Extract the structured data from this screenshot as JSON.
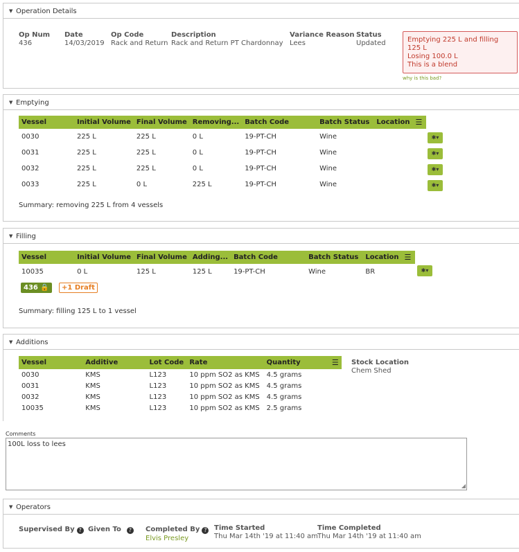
{
  "operation": {
    "header": "Operation Details",
    "columns": [
      {
        "label": "Op Num",
        "value": "436"
      },
      {
        "label": "Date",
        "value": "14/03/2019"
      },
      {
        "label": "Op Code",
        "value": "Rack and Return"
      },
      {
        "label": "Description",
        "value": "Rack and Return PT Chardonnay"
      },
      {
        "label": "Variance Reason",
        "value": "Lees"
      },
      {
        "label": "Status",
        "value": "Updated"
      }
    ],
    "error_lines": [
      "Emptying 225 L and filling 125 L",
      "Losing 100.0 L",
      "This is a blend"
    ],
    "why_link": "why is this bad?"
  },
  "emptying": {
    "header": "Emptying",
    "columns": [
      "Vessel",
      "Initial Volume",
      "Final Volume",
      "Removing...",
      "Batch Code",
      "Batch Status",
      "Location"
    ],
    "rows": [
      [
        "0030",
        "225 L",
        "225 L",
        "0 L",
        "19-PT-CH",
        "Wine",
        ""
      ],
      [
        "0031",
        "225 L",
        "225 L",
        "0 L",
        "19-PT-CH",
        "Wine",
        ""
      ],
      [
        "0032",
        "225 L",
        "225 L",
        "0 L",
        "19-PT-CH",
        "Wine",
        ""
      ],
      [
        "0033",
        "225 L",
        "0 L",
        "225 L",
        "19-PT-CH",
        "Wine",
        ""
      ]
    ],
    "summary": "Summary: removing 225 L from 4 vessels"
  },
  "filling": {
    "header": "Filling",
    "columns": [
      "Vessel",
      "Initial Volume",
      "Final Volume",
      "Adding...",
      "Batch Code",
      "Batch Status",
      "Location"
    ],
    "rows": [
      [
        "10035",
        "0 L",
        "125 L",
        "125 L",
        "19-PT-CH",
        "Wine",
        "BR"
      ]
    ],
    "badge_locked": "436",
    "badge_draft": "+1 Draft",
    "summary": "Summary: filling 125 L to 1 vessel"
  },
  "additions": {
    "header": "Additions",
    "columns": [
      "Vessel",
      "Additive",
      "Lot Code",
      "Rate",
      "Quantity"
    ],
    "rows": [
      [
        "0030",
        "KMS",
        "L123",
        "10 ppm SO2 as KMS",
        "4.5 grams"
      ],
      [
        "0031",
        "KMS",
        "L123",
        "10 ppm SO2 as KMS",
        "4.5 grams"
      ],
      [
        "0032",
        "KMS",
        "L123",
        "10 ppm SO2 as KMS",
        "4.5 grams"
      ],
      [
        "10035",
        "KMS",
        "L123",
        "10 ppm SO2 as KMS",
        "2.5 grams"
      ]
    ],
    "stock_location_label": "Stock Location",
    "stock_location_value": "Chem Shed"
  },
  "comments": {
    "label": "Comments",
    "value": "100L loss to lees"
  },
  "operators": {
    "header": "Operators",
    "supervised_by": "Supervised By",
    "given_to": "Given To",
    "completed_by": "Completed By",
    "completed_by_value": "Elvis Presley",
    "time_started_label": "Time Started",
    "time_started": "Thu Mar 14th '19 at 11:40 am",
    "time_completed_label": "Time Completed",
    "time_completed": "Thu Mar 14th '19 at 11:40 am"
  },
  "colors": {
    "accent": "#9bbd3a",
    "link": "#7a9a22",
    "error": "#c0392b",
    "draft": "#e67e22"
  }
}
